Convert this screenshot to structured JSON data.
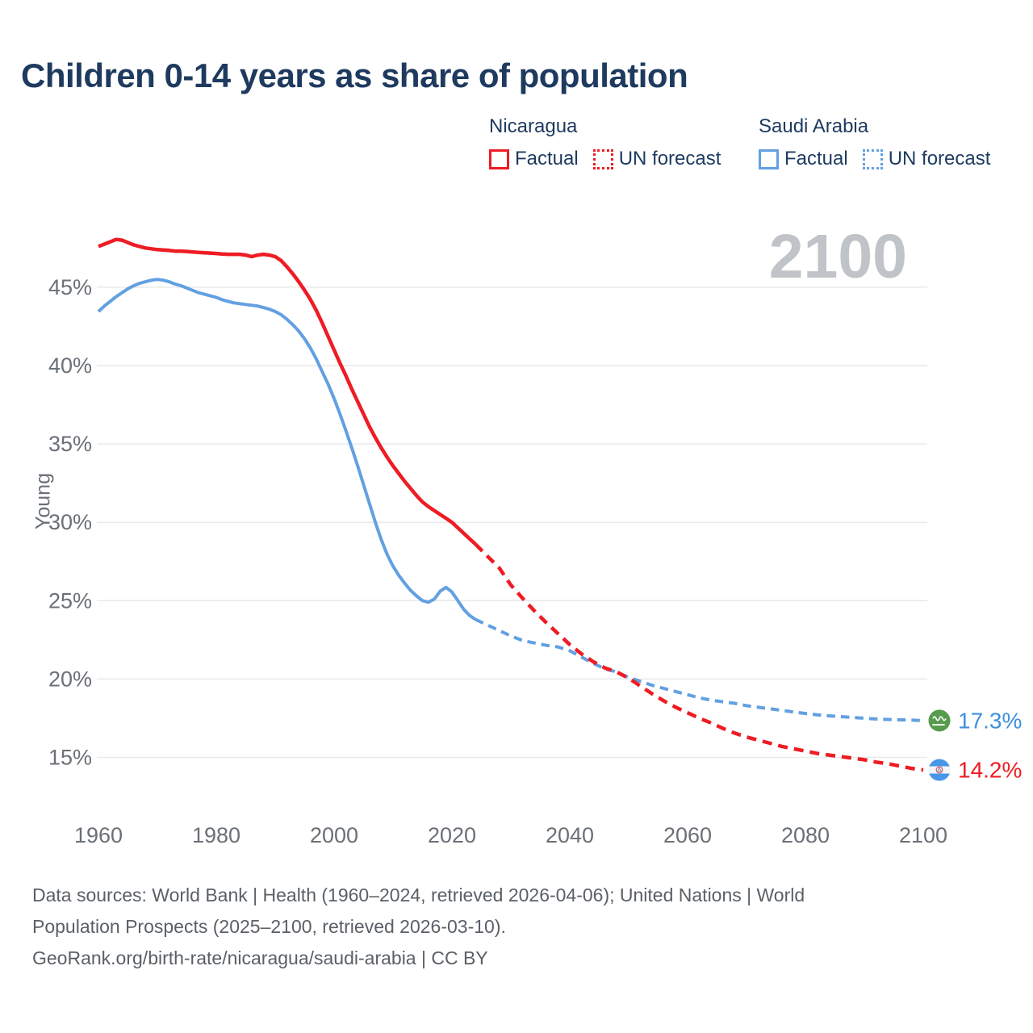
{
  "page": {
    "title": "Children 0-14 years as share of population"
  },
  "legend": {
    "groups": [
      {
        "name": "Nicaragua",
        "color": "#ee1c24",
        "factual_label": "Factual",
        "forecast_label": "UN forecast"
      },
      {
        "name": "Saudi Arabia",
        "color": "#62a0e2",
        "factual_label": "Factual",
        "forecast_label": "UN forecast"
      }
    ]
  },
  "chart_data": {
    "type": "line",
    "title": "Children 0-14 years as share of population",
    "xlabel": "",
    "ylabel": "Young",
    "watermark": "2100",
    "grid": "horizontal",
    "legend_position": "top-right",
    "xlim": [
      1960,
      2100
    ],
    "ylim": [
      13.5,
      48.5
    ],
    "x_ticks": [
      1960,
      1980,
      2000,
      2020,
      2040,
      2060,
      2080,
      2100
    ],
    "y_ticks": [
      {
        "value": 15,
        "label": "15%"
      },
      {
        "value": 20,
        "label": "20%"
      },
      {
        "value": 25,
        "label": "25%"
      },
      {
        "value": 30,
        "label": "30%"
      },
      {
        "value": 35,
        "label": "35%"
      },
      {
        "value": 40,
        "label": "40%"
      },
      {
        "value": 45,
        "label": "45%"
      }
    ],
    "colors": {
      "nicaragua": "#ee1c24",
      "saudi_arabia": "#62a0e2",
      "saudi_label_text": "#3f90dd",
      "gridline": "#e8e9eb",
      "axis_text": "#6a7076",
      "watermark": "#c0c4c8",
      "title_text": "#1e3a5f",
      "footer_text": "#5a6066",
      "saudi_flag_green": "#579b4e",
      "nicaragua_flag_blue": "#4896e8"
    },
    "series": [
      {
        "name": "Saudi Arabia — Factual",
        "country": "Saudi Arabia",
        "kind": "factual",
        "color": "#62a0e2",
        "style": "solid",
        "points": [
          [
            1960,
            43.45
          ],
          [
            1961,
            43.8
          ],
          [
            1962,
            44.1
          ],
          [
            1963,
            44.4
          ],
          [
            1964,
            44.65
          ],
          [
            1965,
            44.9
          ],
          [
            1966,
            45.1
          ],
          [
            1967,
            45.25
          ],
          [
            1968,
            45.35
          ],
          [
            1969,
            45.45
          ],
          [
            1970,
            45.5
          ],
          [
            1971,
            45.45
          ],
          [
            1972,
            45.35
          ],
          [
            1973,
            45.2
          ],
          [
            1974,
            45.1
          ],
          [
            1975,
            44.95
          ],
          [
            1976,
            44.8
          ],
          [
            1977,
            44.65
          ],
          [
            1978,
            44.55
          ],
          [
            1979,
            44.45
          ],
          [
            1980,
            44.35
          ],
          [
            1981,
            44.2
          ],
          [
            1982,
            44.1
          ],
          [
            1983,
            44.0
          ],
          [
            1984,
            43.95
          ],
          [
            1985,
            43.9
          ],
          [
            1986,
            43.85
          ],
          [
            1987,
            43.8
          ],
          [
            1988,
            43.7
          ],
          [
            1989,
            43.6
          ],
          [
            1990,
            43.45
          ],
          [
            1991,
            43.25
          ],
          [
            1992,
            42.95
          ],
          [
            1993,
            42.6
          ],
          [
            1994,
            42.2
          ],
          [
            1995,
            41.7
          ],
          [
            1996,
            41.1
          ],
          [
            1997,
            40.4
          ],
          [
            1998,
            39.6
          ],
          [
            1999,
            38.8
          ],
          [
            2000,
            37.9
          ],
          [
            2001,
            36.9
          ],
          [
            2002,
            35.85
          ],
          [
            2003,
            34.75
          ],
          [
            2004,
            33.6
          ],
          [
            2005,
            32.4
          ],
          [
            2006,
            31.2
          ],
          [
            2007,
            30.0
          ],
          [
            2008,
            28.9
          ],
          [
            2009,
            27.95
          ],
          [
            2010,
            27.2
          ],
          [
            2011,
            26.6
          ],
          [
            2012,
            26.1
          ],
          [
            2013,
            25.65
          ],
          [
            2014,
            25.3
          ],
          [
            2015,
            25.0
          ],
          [
            2016,
            24.9
          ],
          [
            2017,
            25.1
          ],
          [
            2018,
            25.6
          ],
          [
            2019,
            25.85
          ],
          [
            2020,
            25.55
          ],
          [
            2021,
            25.0
          ],
          [
            2022,
            24.45
          ],
          [
            2023,
            24.05
          ],
          [
            2024,
            23.8
          ]
        ]
      },
      {
        "name": "Saudi Arabia — UN forecast",
        "country": "Saudi Arabia",
        "kind": "forecast",
        "color": "#62a0e2",
        "style": "dashed",
        "points": [
          [
            2024,
            23.8
          ],
          [
            2026,
            23.45
          ],
          [
            2028,
            23.1
          ],
          [
            2030,
            22.75
          ],
          [
            2032,
            22.45
          ],
          [
            2034,
            22.3
          ],
          [
            2036,
            22.15
          ],
          [
            2038,
            22.05
          ],
          [
            2040,
            21.8
          ],
          [
            2042,
            21.4
          ],
          [
            2044,
            21.0
          ],
          [
            2046,
            20.65
          ],
          [
            2048,
            20.45
          ],
          [
            2050,
            20.1
          ],
          [
            2052,
            19.85
          ],
          [
            2054,
            19.6
          ],
          [
            2056,
            19.4
          ],
          [
            2058,
            19.2
          ],
          [
            2060,
            19.0
          ],
          [
            2062,
            18.8
          ],
          [
            2064,
            18.65
          ],
          [
            2066,
            18.55
          ],
          [
            2068,
            18.45
          ],
          [
            2070,
            18.3
          ],
          [
            2072,
            18.2
          ],
          [
            2074,
            18.1
          ],
          [
            2076,
            18.0
          ],
          [
            2078,
            17.9
          ],
          [
            2080,
            17.8
          ],
          [
            2082,
            17.72
          ],
          [
            2084,
            17.65
          ],
          [
            2086,
            17.6
          ],
          [
            2088,
            17.55
          ],
          [
            2090,
            17.5
          ],
          [
            2092,
            17.45
          ],
          [
            2094,
            17.42
          ],
          [
            2096,
            17.4
          ],
          [
            2098,
            17.38
          ],
          [
            2100,
            17.35
          ]
        ]
      },
      {
        "name": "Nicaragua — Factual",
        "country": "Nicaragua",
        "kind": "factual",
        "color": "#ee1c24",
        "style": "solid",
        "points": [
          [
            1960,
            47.6
          ],
          [
            1961,
            47.75
          ],
          [
            1962,
            47.9
          ],
          [
            1963,
            48.05
          ],
          [
            1964,
            48.0
          ],
          [
            1965,
            47.85
          ],
          [
            1966,
            47.7
          ],
          [
            1967,
            47.6
          ],
          [
            1968,
            47.5
          ],
          [
            1969,
            47.45
          ],
          [
            1970,
            47.4
          ],
          [
            1971,
            47.38
          ],
          [
            1972,
            47.35
          ],
          [
            1973,
            47.3
          ],
          [
            1974,
            47.3
          ],
          [
            1975,
            47.28
          ],
          [
            1976,
            47.25
          ],
          [
            1977,
            47.22
          ],
          [
            1978,
            47.2
          ],
          [
            1979,
            47.18
          ],
          [
            1980,
            47.15
          ],
          [
            1981,
            47.12
          ],
          [
            1982,
            47.1
          ],
          [
            1983,
            47.1
          ],
          [
            1984,
            47.1
          ],
          [
            1985,
            47.05
          ],
          [
            1986,
            46.95
          ],
          [
            1987,
            47.05
          ],
          [
            1988,
            47.1
          ],
          [
            1989,
            47.05
          ],
          [
            1990,
            46.95
          ],
          [
            1991,
            46.7
          ],
          [
            1992,
            46.3
          ],
          [
            1993,
            45.85
          ],
          [
            1994,
            45.35
          ],
          [
            1995,
            44.8
          ],
          [
            1996,
            44.2
          ],
          [
            1997,
            43.5
          ],
          [
            1998,
            42.7
          ],
          [
            1999,
            41.85
          ],
          [
            2000,
            41.0
          ],
          [
            2001,
            40.15
          ],
          [
            2002,
            39.35
          ],
          [
            2003,
            38.5
          ],
          [
            2004,
            37.7
          ],
          [
            2005,
            36.9
          ],
          [
            2006,
            36.1
          ],
          [
            2007,
            35.4
          ],
          [
            2008,
            34.75
          ],
          [
            2009,
            34.15
          ],
          [
            2010,
            33.6
          ],
          [
            2011,
            33.1
          ],
          [
            2012,
            32.6
          ],
          [
            2013,
            32.15
          ],
          [
            2014,
            31.7
          ],
          [
            2015,
            31.3
          ],
          [
            2016,
            31.0
          ],
          [
            2017,
            30.75
          ],
          [
            2018,
            30.5
          ],
          [
            2019,
            30.25
          ],
          [
            2020,
            30.0
          ],
          [
            2021,
            29.65
          ],
          [
            2022,
            29.3
          ],
          [
            2023,
            28.95
          ],
          [
            2024,
            28.6
          ]
        ]
      },
      {
        "name": "Nicaragua — UN forecast",
        "country": "Nicaragua",
        "kind": "forecast",
        "color": "#ee1c24",
        "style": "dashed",
        "points": [
          [
            2024,
            28.6
          ],
          [
            2026,
            27.85
          ],
          [
            2028,
            27.1
          ],
          [
            2030,
            26.0
          ],
          [
            2032,
            25.15
          ],
          [
            2034,
            24.35
          ],
          [
            2036,
            23.6
          ],
          [
            2038,
            22.9
          ],
          [
            2040,
            22.2
          ],
          [
            2042,
            21.6
          ],
          [
            2044,
            21.1
          ],
          [
            2046,
            20.7
          ],
          [
            2048,
            20.45
          ],
          [
            2050,
            20.05
          ],
          [
            2052,
            19.55
          ],
          [
            2054,
            19.05
          ],
          [
            2056,
            18.6
          ],
          [
            2058,
            18.2
          ],
          [
            2060,
            17.85
          ],
          [
            2062,
            17.5
          ],
          [
            2064,
            17.2
          ],
          [
            2066,
            16.85
          ],
          [
            2068,
            16.55
          ],
          [
            2070,
            16.3
          ],
          [
            2072,
            16.1
          ],
          [
            2074,
            15.9
          ],
          [
            2076,
            15.7
          ],
          [
            2078,
            15.55
          ],
          [
            2080,
            15.4
          ],
          [
            2082,
            15.25
          ],
          [
            2084,
            15.15
          ],
          [
            2086,
            15.05
          ],
          [
            2088,
            14.95
          ],
          [
            2090,
            14.85
          ],
          [
            2092,
            14.7
          ],
          [
            2094,
            14.6
          ],
          [
            2096,
            14.45
          ],
          [
            2098,
            14.3
          ],
          [
            2100,
            14.2
          ]
        ]
      }
    ],
    "end_labels": [
      {
        "country": "Saudi Arabia",
        "label": "17.3%",
        "value": 17.35,
        "text_color": "#3f90dd",
        "flag": "saudi-arabia-flag"
      },
      {
        "country": "Nicaragua",
        "label": "14.2%",
        "value": 14.2,
        "text_color": "#ee1c24",
        "flag": "nicaragua-flag"
      }
    ]
  },
  "footer": {
    "lines": [
      "Data sources: World Bank | Health (1960–2024, retrieved 2026-04-06); United Nations | World",
      "Population Prospects (2025–2100, retrieved 2026-03-10).",
      "GeoRank.org/birth-rate/nicaragua/saudi-arabia | CC BY"
    ]
  }
}
